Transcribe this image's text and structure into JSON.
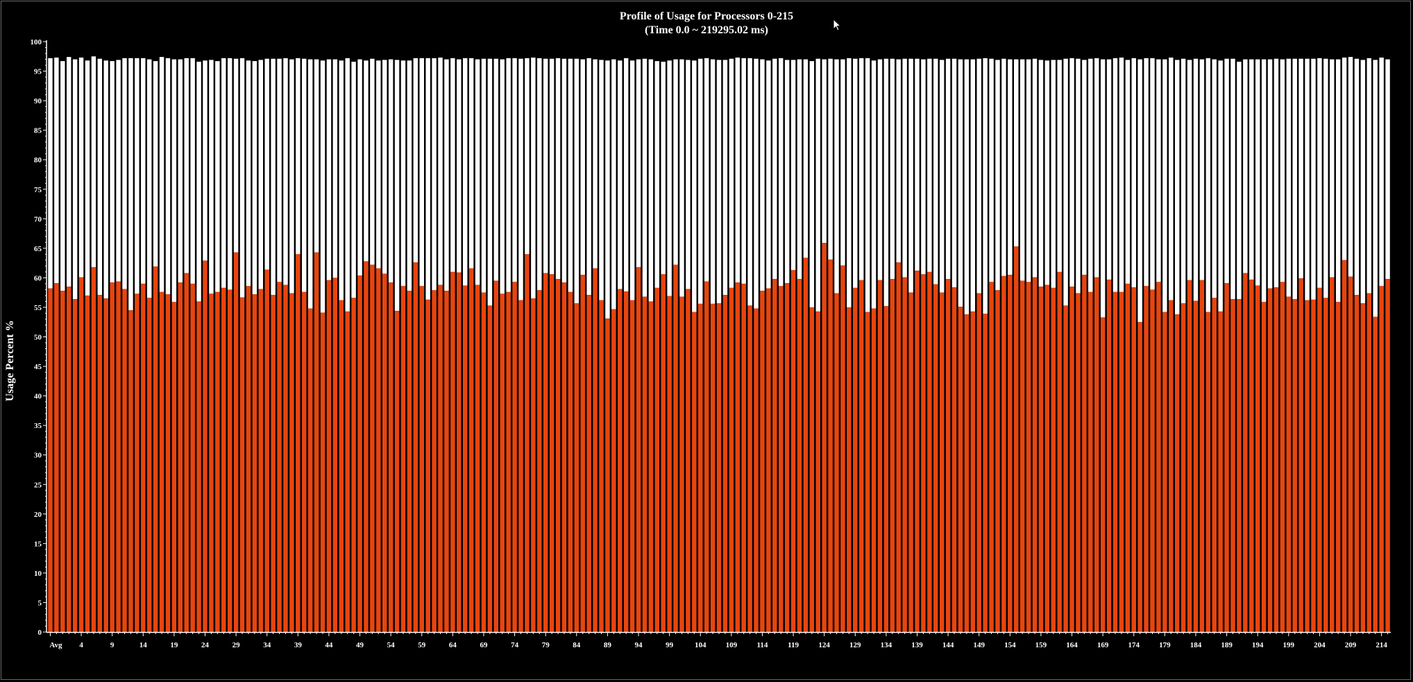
{
  "colors": {
    "background": "#000000",
    "usage": "#e8450f",
    "usage_top": "#c8300a",
    "idle": "#ffffff",
    "axis": "#ffffff"
  },
  "chart_data": {
    "type": "bar",
    "stacked": true,
    "title": "Profile of Usage for Processors 0-215",
    "subtitle": "(Time 0.0 ~ 219295.02 ms)",
    "ylabel": "Usage Percent %",
    "xlabel": "",
    "ylim": [
      0,
      100
    ],
    "yticks": [
      0,
      5,
      10,
      15,
      20,
      25,
      30,
      35,
      40,
      45,
      50,
      55,
      60,
      65,
      70,
      75,
      80,
      85,
      90,
      95,
      100
    ],
    "first_category": "Avg",
    "processor_range": [
      0,
      215
    ],
    "xtick_labels": [
      "Avg",
      "4",
      "9",
      "14",
      "19",
      "24",
      "29",
      "34",
      "39",
      "44",
      "49",
      "54",
      "59",
      "64",
      "69",
      "74",
      "79",
      "84",
      "89",
      "94",
      "99",
      "104",
      "109",
      "114",
      "119",
      "124",
      "129",
      "134",
      "139",
      "144",
      "149",
      "154",
      "159",
      "164",
      "169",
      "174",
      "179",
      "184",
      "189",
      "194",
      "199",
      "204",
      "209",
      "214"
    ],
    "series": [
      {
        "role": "usage",
        "values": [
          58.2,
          59.1,
          57.8,
          58.5,
          56.4,
          60.1,
          57.0,
          61.8,
          57.1,
          56.5,
          59.2,
          59.4,
          58.1,
          54.5,
          57.3,
          59.0,
          56.6,
          61.9,
          57.6,
          57.2,
          55.9,
          59.2,
          60.8,
          59.0,
          56.0,
          62.9,
          57.3,
          57.6,
          58.3,
          58.0,
          64.3,
          56.7,
          58.6,
          57.2,
          58.1,
          61.4,
          57.1,
          59.3,
          58.8,
          57.4,
          64.0,
          57.6,
          54.8,
          64.3,
          54.1,
          59.6,
          60.0,
          56.2,
          54.3,
          56.6,
          60.4,
          62.8,
          62.2,
          61.6,
          60.7,
          59.2,
          54.4,
          58.6,
          57.8,
          62.6,
          58.6,
          56.3,
          57.9,
          58.8,
          57.8,
          61.0,
          60.9,
          58.7,
          61.6,
          58.8,
          57.5,
          55.3,
          59.5,
          57.3,
          57.6,
          59.3,
          56.2,
          64.0,
          56.5,
          57.9,
          60.8,
          60.6,
          59.8,
          59.2,
          57.6,
          55.7,
          60.5,
          57.1,
          61.6,
          56.2,
          53.1,
          54.7,
          58.1,
          57.7,
          56.2,
          61.8,
          56.8,
          56.0,
          58.3,
          60.6,
          56.9,
          62.2,
          56.8,
          58.1,
          54.2,
          55.6,
          59.4,
          55.6,
          55.7,
          57.1,
          58.3,
          59.2,
          59.0,
          55.3,
          54.8,
          57.8,
          58.2,
          59.8,
          58.6,
          59.1,
          61.3,
          59.8,
          63.4,
          55.0,
          54.3,
          65.9,
          63.1,
          57.4,
          62.1,
          55.0,
          58.3,
          59.6,
          54.2,
          54.8,
          59.6,
          55.2,
          59.8,
          62.6,
          60.1,
          57.5,
          61.2,
          60.6,
          61.0,
          58.9,
          57.5,
          59.8,
          58.4,
          55.1,
          53.8,
          54.3,
          57.4,
          53.9,
          59.3,
          57.9,
          60.3,
          60.5,
          65.3,
          59.5,
          59.3,
          60.1,
          58.5,
          58.8,
          58.3,
          61.0,
          55.3,
          58.5,
          57.4,
          60.5,
          57.6,
          60.1,
          53.3,
          59.7,
          57.6,
          57.6,
          59.0,
          58.4,
          52.5,
          58.6,
          58.0,
          59.3,
          54.2,
          56.2,
          53.8,
          55.7,
          59.6,
          56.1,
          59.6,
          54.2,
          56.6,
          54.3,
          59.1,
          56.4,
          56.4,
          60.8,
          59.7,
          58.7,
          55.9,
          58.2,
          58.4,
          59.3,
          56.8,
          56.4,
          59.9,
          56.2,
          56.3,
          58.3,
          56.6,
          60.1,
          55.9,
          63.0,
          60.2,
          57.1,
          55.7,
          57.4,
          53.4,
          58.6,
          59.8
        ]
      },
      {
        "role": "idle",
        "values": [
          39.0,
          38.2,
          38.9,
          38.9,
          40.6,
          37.2,
          39.8,
          35.7,
          40.0,
          40.3,
          37.5,
          37.5,
          39.1,
          42.7,
          39.9,
          38.2,
          40.4,
          34.8,
          39.8,
          40.0,
          41.1,
          37.8,
          36.4,
          38.2,
          40.6,
          33.9,
          39.6,
          39.1,
          38.9,
          39.2,
          32.8,
          40.5,
          38.2,
          39.5,
          38.8,
          35.7,
          40.0,
          37.8,
          38.4,
          39.6,
          33.2,
          39.5,
          42.2,
          32.7,
          42.7,
          37.4,
          37.0,
          40.6,
          42.9,
          40.0,
          36.6,
          34.0,
          34.9,
          35.2,
          36.2,
          37.8,
          42.5,
          38.2,
          39.0,
          34.6,
          38.6,
          40.9,
          39.3,
          38.5,
          39.2,
          36.2,
          36.1,
          38.5,
          35.6,
          38.2,
          39.6,
          41.8,
          37.6,
          39.7,
          39.6,
          37.9,
          40.9,
          33.2,
          40.8,
          39.3,
          36.3,
          36.5,
          37.4,
          37.9,
          39.5,
          41.4,
          36.5,
          40.1,
          35.4,
          40.7,
          43.7,
          42.3,
          38.7,
          39.5,
          40.6,
          35.2,
          40.3,
          41.0,
          38.4,
          36.0,
          39.9,
          34.8,
          40.2,
          38.8,
          42.6,
          41.5,
          37.8,
          41.4,
          41.2,
          39.8,
          38.8,
          38.1,
          38.2,
          41.9,
          42.3,
          39.2,
          38.6,
          37.3,
          38.6,
          37.8,
          35.6,
          37.2,
          33.6,
          41.7,
          42.8,
          31.1,
          34.0,
          39.6,
          34.9,
          42.2,
          38.8,
          37.6,
          43.0,
          42.0,
          37.4,
          41.9,
          37.3,
          34.4,
          37.0,
          39.6,
          35.9,
          36.4,
          36.1,
          38.2,
          39.4,
          37.3,
          38.7,
          41.9,
          43.2,
          42.7,
          39.7,
          43.3,
          37.8,
          39.0,
          36.8,
          36.5,
          31.7,
          37.5,
          37.7,
          37.0,
          38.4,
          38.0,
          38.6,
          35.9,
          41.8,
          38.7,
          39.7,
          36.4,
          39.5,
          37.1,
          43.7,
          37.3,
          39.6,
          39.7,
          37.9,
          38.8,
          44.5,
          38.6,
          39.2,
          37.7,
          42.8,
          41.1,
          43.1,
          41.4,
          37.3,
          41.0,
          37.4,
          43.0,
          40.4,
          42.5,
          38.0,
          40.7,
          40.2,
          36.2,
          37.3,
          38.3,
          41.1,
          38.8,
          38.7,
          37.7,
          40.3,
          40.7,
          37.2,
          40.9,
          40.8,
          38.9,
          40.5,
          36.9,
          41.1,
          34.3,
          37.2,
          40.0,
          41.2,
          39.8,
          43.5,
          38.7,
          37.2
        ]
      }
    ]
  }
}
